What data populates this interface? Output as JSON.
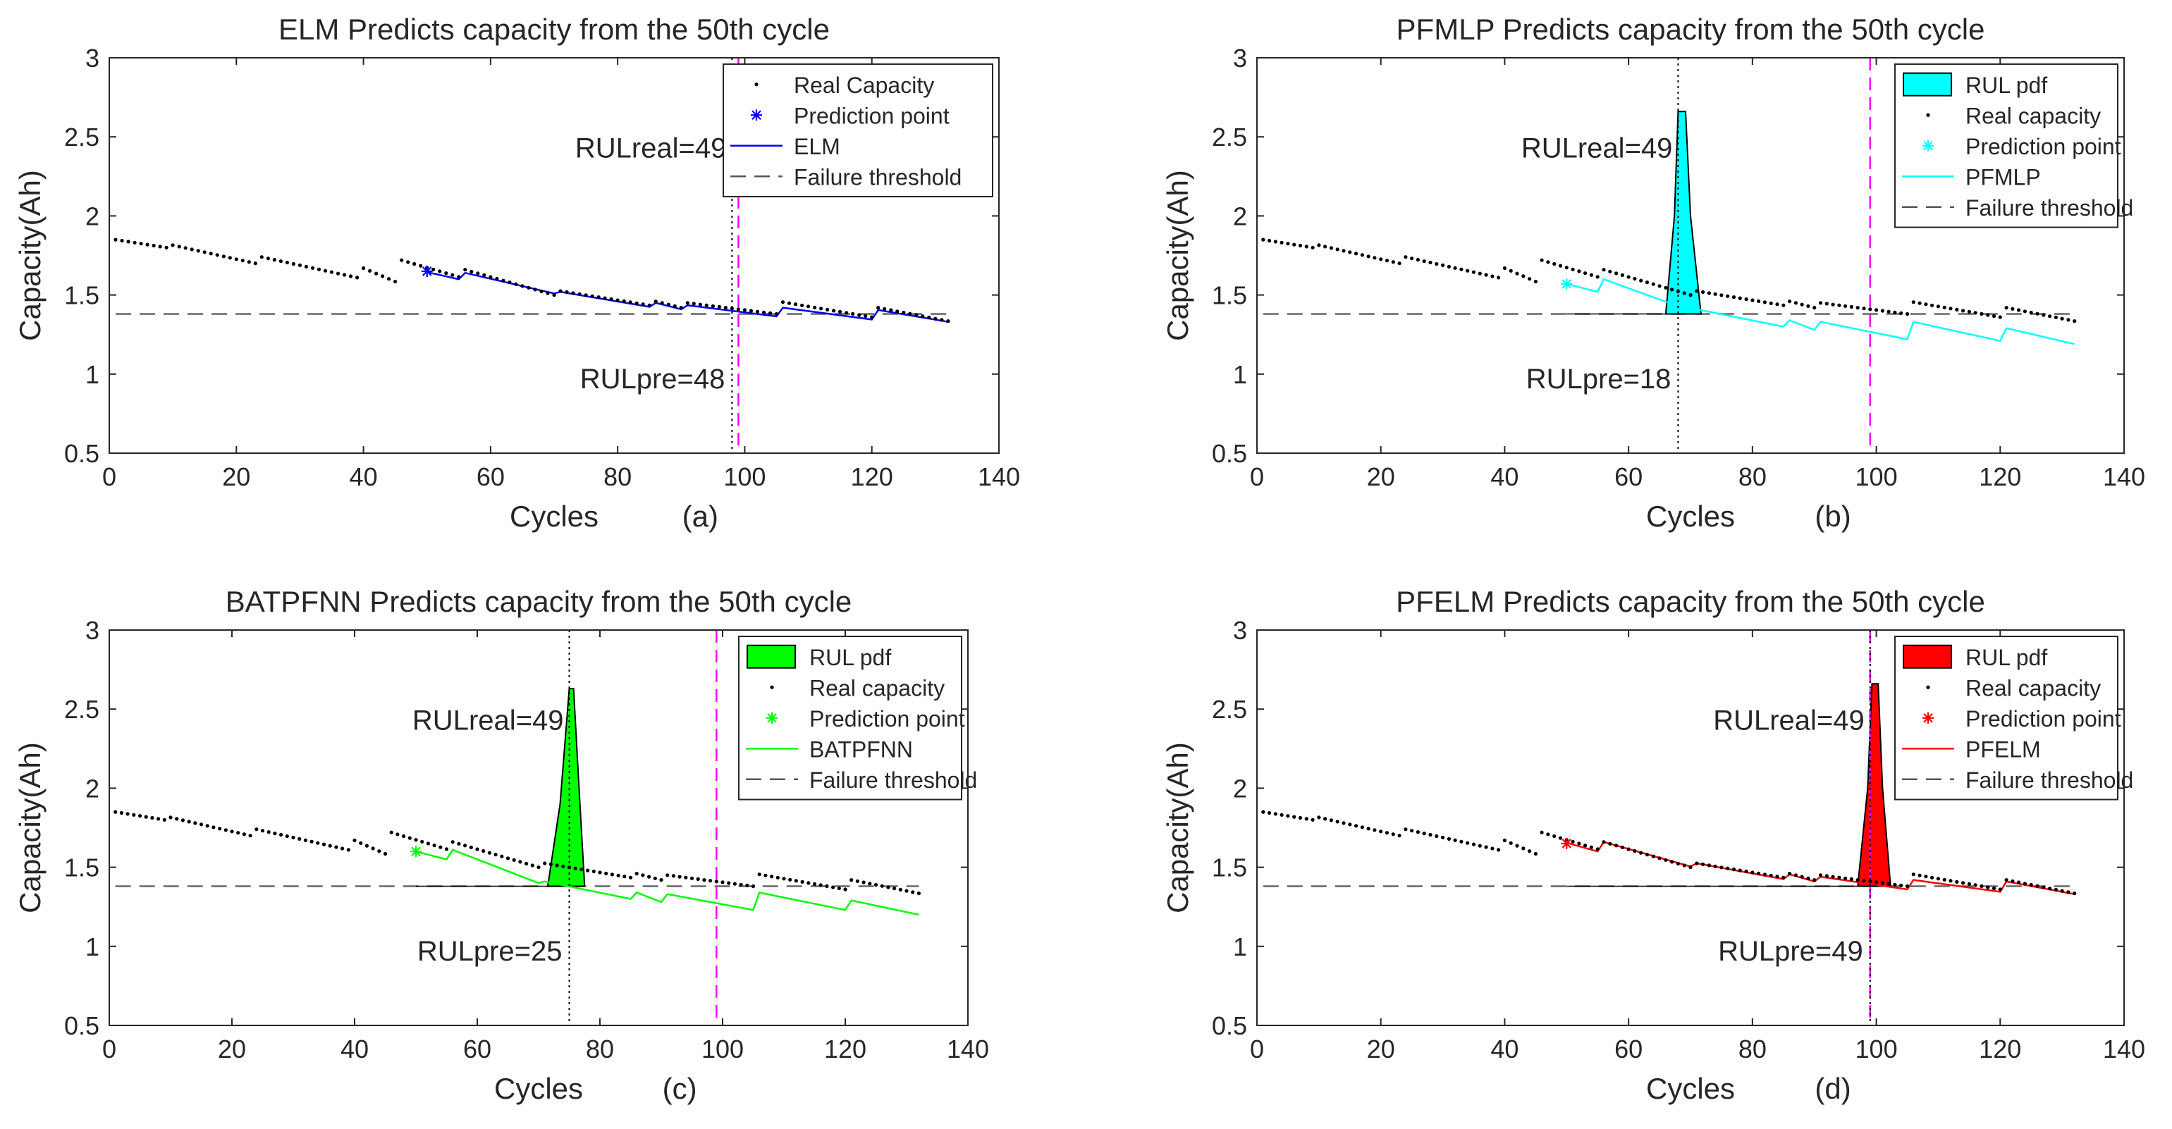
{
  "chart_data": [
    {
      "type": "line",
      "title": "ELM Predicts capacity from the 50th cycle",
      "xlabel": "Cycles",
      "panel_label": "(a)",
      "ylabel": "Capacity(Ah)",
      "xlim": [
        0,
        140
      ],
      "ylim": [
        0.5,
        3
      ],
      "xticks": [
        0,
        20,
        40,
        60,
        80,
        100,
        120,
        140
      ],
      "yticks": [
        0.5,
        1,
        1.5,
        2,
        2.5,
        3
      ],
      "grid": false,
      "legend_position": "top-right",
      "threshold": 1.38,
      "prediction_point": {
        "x": 50,
        "y": 1.65
      },
      "prediction_start_cycle": 50,
      "rul_real_cycle": 99,
      "rul_pred_cycle": 98,
      "rul_real_label": "RULreal=49",
      "rul_pre_label": "RULpre=48",
      "pred_color": "#0000ff",
      "pred_segments": [
        {
          "x0": 50,
          "y0": 1.645,
          "x1": 55,
          "y1": 1.6
        },
        {
          "x0": 56,
          "y0": 1.64,
          "x1": 70,
          "y1": 1.51
        },
        {
          "x0": 71,
          "y0": 1.52,
          "x1": 85,
          "y1": 1.425
        },
        {
          "x0": 86,
          "y0": 1.45,
          "x1": 90,
          "y1": 1.41
        },
        {
          "x0": 91,
          "y0": 1.435,
          "x1": 105,
          "y1": 1.365
        },
        {
          "x0": 106,
          "y0": 1.42,
          "x1": 120,
          "y1": 1.345
        },
        {
          "x0": 121,
          "y0": 1.405,
          "x1": 132,
          "y1": 1.33
        }
      ],
      "pdf": null,
      "legend": [
        {
          "label": "Real Capacity",
          "kind": "dot"
        },
        {
          "label": "Prediction point",
          "kind": "star"
        },
        {
          "label": "ELM",
          "kind": "line"
        },
        {
          "label": "Failure threshold",
          "kind": "dash"
        }
      ]
    },
    {
      "type": "line",
      "title": "PFMLP Predicts capacity from the 50th cycle",
      "xlabel": "Cycles",
      "panel_label": "(b)",
      "ylabel": "Capacity(Ah)",
      "xlim": [
        0,
        140
      ],
      "ylim": [
        0.5,
        3
      ],
      "xticks": [
        0,
        20,
        40,
        60,
        80,
        100,
        120,
        140
      ],
      "yticks": [
        0.5,
        1,
        1.5,
        2,
        2.5,
        3
      ],
      "grid": false,
      "legend_position": "top-right",
      "threshold": 1.38,
      "prediction_point": {
        "x": 50,
        "y": 1.57
      },
      "prediction_start_cycle": 50,
      "rul_real_cycle": 99,
      "rul_pred_cycle": 68,
      "rul_real_label": "RULreal=49",
      "rul_pre_label": "RULpre=18",
      "pred_color": "#00ffff",
      "pred_segments": [
        {
          "x0": 50,
          "y0": 1.57,
          "x1": 55,
          "y1": 1.52
        },
        {
          "x0": 56,
          "y0": 1.6,
          "x1": 70,
          "y1": 1.4
        },
        {
          "x0": 71,
          "y0": 1.41,
          "x1": 85,
          "y1": 1.3
        },
        {
          "x0": 86,
          "y0": 1.34,
          "x1": 90,
          "y1": 1.28
        },
        {
          "x0": 91,
          "y0": 1.33,
          "x1": 105,
          "y1": 1.22
        },
        {
          "x0": 106,
          "y0": 1.33,
          "x1": 120,
          "y1": 1.21
        },
        {
          "x0": 121,
          "y0": 1.29,
          "x1": 132,
          "y1": 1.19
        }
      ],
      "pdf": {
        "label": "RUL pdf",
        "color": "#00ffff",
        "points": [
          [
            66,
            1.38
          ],
          [
            67.4,
            2.0
          ],
          [
            68,
            2.66
          ],
          [
            69.2,
            2.66
          ],
          [
            70,
            2.0
          ],
          [
            71.7,
            1.38
          ]
        ]
      },
      "legend": [
        {
          "label": "RUL pdf",
          "kind": "patch"
        },
        {
          "label": "Real capacity",
          "kind": "dot"
        },
        {
          "label": "Prediction point",
          "kind": "star"
        },
        {
          "label": "PFMLP",
          "kind": "line"
        },
        {
          "label": "Failure threshold",
          "kind": "dash"
        }
      ]
    },
    {
      "type": "line",
      "title": "BATPFNN Predicts capacity from the 50th cycle",
      "xlabel": "Cycles",
      "panel_label": "(c)",
      "ylabel": "Capacity(Ah)",
      "xlim": [
        0,
        140
      ],
      "ylim": [
        0.5,
        3
      ],
      "xticks": [
        0,
        20,
        40,
        60,
        80,
        100,
        120,
        140
      ],
      "yticks": [
        0.5,
        1,
        1.5,
        2,
        2.5,
        3
      ],
      "grid": false,
      "legend_position": "top-right",
      "threshold": 1.38,
      "prediction_point": {
        "x": 50,
        "y": 1.6
      },
      "prediction_start_cycle": 50,
      "rul_real_cycle": 99,
      "rul_pred_cycle": 75,
      "rul_real_label": "RULreal=49",
      "rul_pre_label": "RULpre=25",
      "pred_color": "#00ff00",
      "pred_segments": [
        {
          "x0": 50,
          "y0": 1.6,
          "x1": 55,
          "y1": 1.55
        },
        {
          "x0": 56,
          "y0": 1.61,
          "x1": 70,
          "y1": 1.4
        },
        {
          "x0": 71,
          "y0": 1.41,
          "x1": 85,
          "y1": 1.3
        },
        {
          "x0": 86,
          "y0": 1.34,
          "x1": 90,
          "y1": 1.28
        },
        {
          "x0": 91,
          "y0": 1.33,
          "x1": 105,
          "y1": 1.23
        },
        {
          "x0": 106,
          "y0": 1.34,
          "x1": 120,
          "y1": 1.23
        },
        {
          "x0": 121,
          "y0": 1.29,
          "x1": 132,
          "y1": 1.2
        }
      ],
      "pdf": {
        "label": "RUL pdf",
        "color": "#00ff00",
        "points": [
          [
            71.5,
            1.38
          ],
          [
            73.5,
            1.9
          ],
          [
            75,
            2.63
          ],
          [
            75.7,
            2.63
          ],
          [
            76.6,
            2.0
          ],
          [
            77.5,
            1.38
          ]
        ]
      },
      "legend": [
        {
          "label": "RUL pdf",
          "kind": "patch"
        },
        {
          "label": "Real capacity",
          "kind": "dot"
        },
        {
          "label": "Prediction point",
          "kind": "star"
        },
        {
          "label": "BATPFNN",
          "kind": "line"
        },
        {
          "label": "Failure threshold",
          "kind": "dash"
        }
      ]
    },
    {
      "type": "line",
      "title": "PFELM Predicts capacity from the 50th cycle",
      "xlabel": "Cycles",
      "panel_label": "(d)",
      "ylabel": "Capacity(Ah)",
      "xlim": [
        0,
        140
      ],
      "ylim": [
        0.5,
        3
      ],
      "xticks": [
        0,
        20,
        40,
        60,
        80,
        100,
        120,
        140
      ],
      "yticks": [
        0.5,
        1,
        1.5,
        2,
        2.5,
        3
      ],
      "grid": false,
      "legend_position": "top-right",
      "threshold": 1.38,
      "prediction_point": {
        "x": 50,
        "y": 1.65
      },
      "prediction_start_cycle": 50,
      "rul_real_cycle": 99,
      "rul_pred_cycle": 99,
      "rul_real_label": "RULreal=49",
      "rul_pre_label": "RULpre=49",
      "pred_color": "#ff0000",
      "pred_segments": [
        {
          "x0": 50,
          "y0": 1.655,
          "x1": 55,
          "y1": 1.6
        },
        {
          "x0": 56,
          "y0": 1.66,
          "x1": 70,
          "y1": 1.505
        },
        {
          "x0": 71,
          "y0": 1.525,
          "x1": 85,
          "y1": 1.425
        },
        {
          "x0": 86,
          "y0": 1.455,
          "x1": 90,
          "y1": 1.41
        },
        {
          "x0": 91,
          "y0": 1.44,
          "x1": 105,
          "y1": 1.36
        },
        {
          "x0": 106,
          "y0": 1.42,
          "x1": 120,
          "y1": 1.345
        },
        {
          "x0": 121,
          "y0": 1.41,
          "x1": 132,
          "y1": 1.33
        }
      ],
      "pdf": {
        "label": "RUL pdf",
        "color": "#ff0000",
        "points": [
          [
            97,
            1.38
          ],
          [
            98.6,
            2.0
          ],
          [
            99.3,
            2.66
          ],
          [
            100.3,
            2.66
          ],
          [
            101,
            2.0
          ],
          [
            102.3,
            1.38
          ]
        ]
      },
      "legend": [
        {
          "label": "RUL pdf",
          "kind": "patch"
        },
        {
          "label": "Real capacity",
          "kind": "dot"
        },
        {
          "label": "Prediction point",
          "kind": "star"
        },
        {
          "label": "PFELM",
          "kind": "line"
        },
        {
          "label": "Failure threshold",
          "kind": "dash"
        }
      ]
    }
  ],
  "real_capacity": {
    "color": "#000000",
    "segments": [
      {
        "x0": 1,
        "y0": 1.85,
        "x1": 9,
        "y1": 1.8
      },
      {
        "x0": 10,
        "y0": 1.815,
        "x1": 23,
        "y1": 1.7
      },
      {
        "x0": 24,
        "y0": 1.74,
        "x1": 39,
        "y1": 1.61
      },
      {
        "x0": 40,
        "y0": 1.67,
        "x1": 45,
        "y1": 1.585
      },
      {
        "x0": 46,
        "y0": 1.72,
        "x1": 55,
        "y1": 1.615
      },
      {
        "x0": 56,
        "y0": 1.66,
        "x1": 70,
        "y1": 1.5
      },
      {
        "x0": 71,
        "y0": 1.525,
        "x1": 85,
        "y1": 1.435
      },
      {
        "x0": 86,
        "y0": 1.46,
        "x1": 90,
        "y1": 1.42
      },
      {
        "x0": 91,
        "y0": 1.45,
        "x1": 105,
        "y1": 1.38
      },
      {
        "x0": 106,
        "y0": 1.455,
        "x1": 120,
        "y1": 1.36
      },
      {
        "x0": 121,
        "y0": 1.42,
        "x1": 132,
        "y1": 1.335
      }
    ]
  },
  "colors": {
    "threshold": "#666666",
    "rul_real_line": "#ff00ff",
    "rul_pred_line": "#000000",
    "pdf_edge": "#000000",
    "axis": "#262626"
  }
}
